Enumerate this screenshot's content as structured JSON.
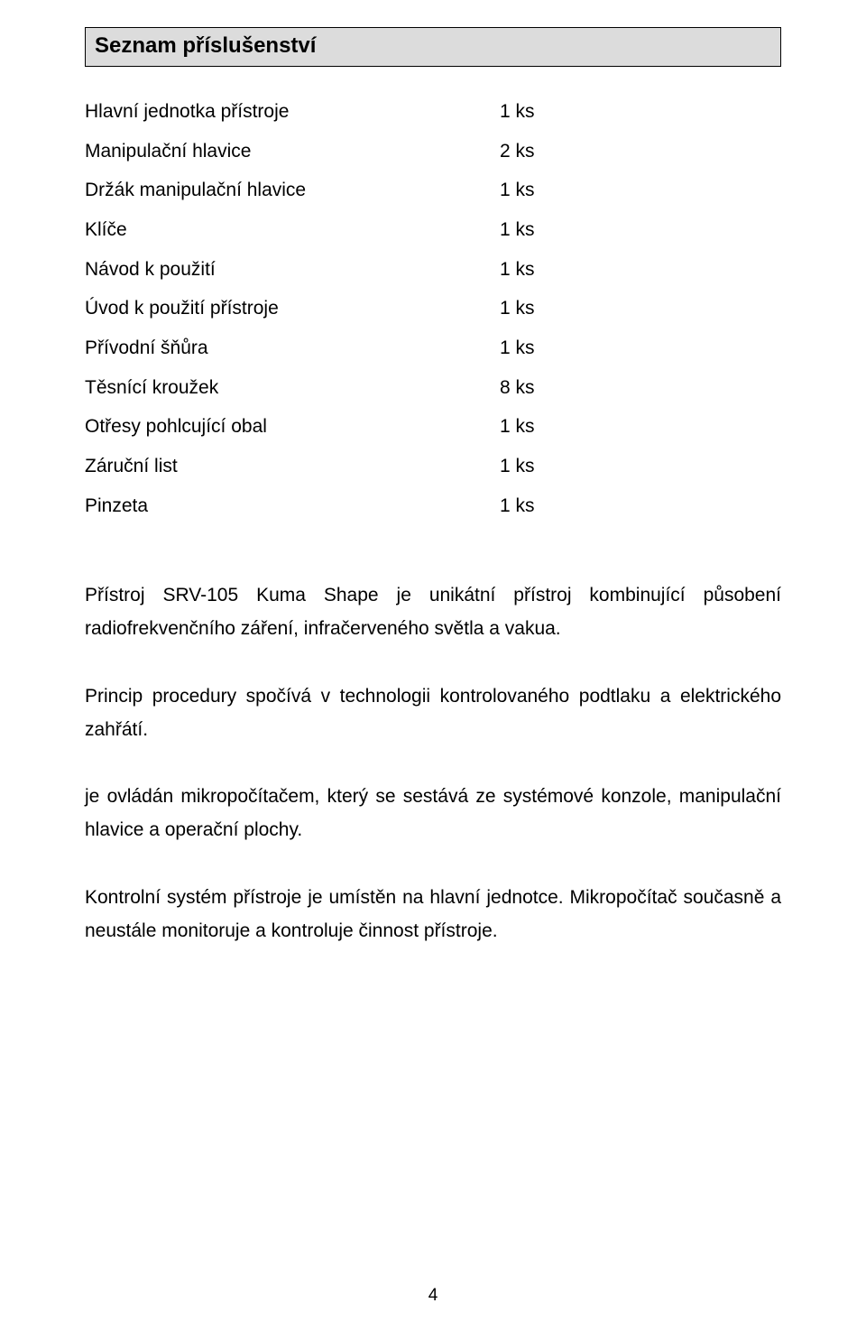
{
  "title": "Seznam příslušenství",
  "items": [
    {
      "label": "Hlavní jednotka přístroje",
      "qty": "1 ks"
    },
    {
      "label": "Manipulační hlavice",
      "qty": "2 ks"
    },
    {
      "label": "Držák manipulační hlavice",
      "qty": "1 ks"
    },
    {
      "label": "Klíče",
      "qty": "1 ks"
    },
    {
      "label": "Návod k použití",
      "qty": "1 ks"
    },
    {
      "label": "Úvod k použití přístroje",
      "qty": "1 ks"
    },
    {
      "label": "Přívodní šňůra",
      "qty": "1 ks"
    },
    {
      "label": "Těsnící kroužek",
      "qty": "8 ks"
    },
    {
      "label": "Otřesy pohlcující obal",
      "qty": "1 ks"
    },
    {
      "label": "Záruční list",
      "qty": "1 ks"
    },
    {
      "label": "Pinzeta",
      "qty": "1 ks"
    }
  ],
  "paragraphs": {
    "p1": "Přístroj SRV-105 Kuma Shape je unikátní přístroj kombinující působení radiofrekvenčního záření, infračerveného světla a vakua.",
    "p2": "Princip procedury spočívá v technologii kontrolovaného podtlaku a elektrického zahřátí.",
    "p3": "je ovládán mikropočítačem, který se sestává ze systémové konzole, manipulační hlavice a operační plochy.",
    "p4": "Kontrolní systém přístroje je umístěn na hlavní jednotce. Mikropočítač současně a neustále monitoruje a kontroluje činnost přístroje."
  },
  "page_number": "4"
}
